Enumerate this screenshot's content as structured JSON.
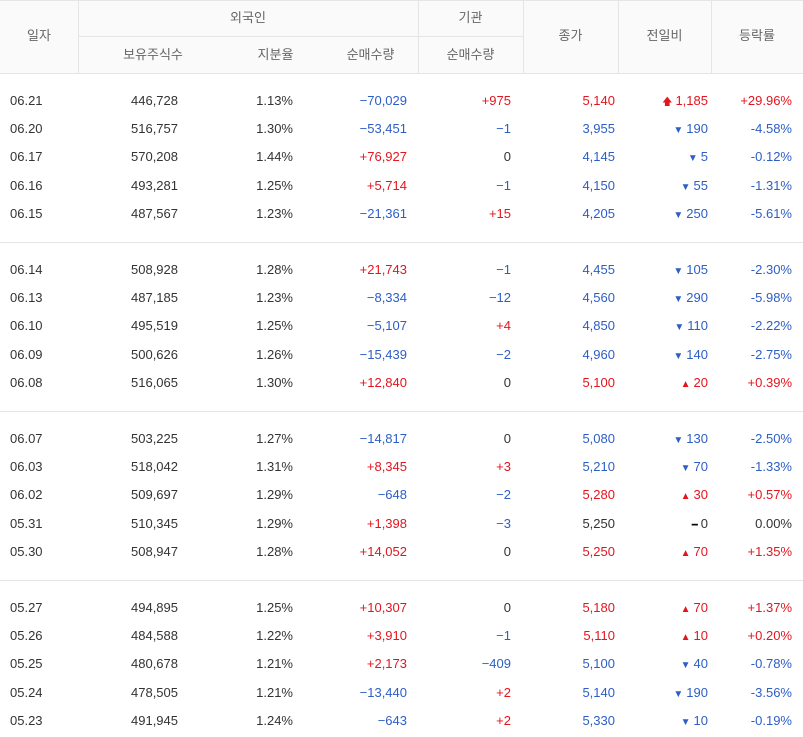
{
  "header": {
    "date": "일자",
    "foreign": "외국인",
    "institution": "기관",
    "holdings": "보유주식수",
    "share_ratio": "지분율",
    "foreign_net": "순매수량",
    "inst_net": "순매수량",
    "close": "종가",
    "change": "전일비",
    "change_rate": "등락률"
  },
  "rows": [
    {
      "date": "06.21",
      "holdings": "446,728",
      "ratio": "1.13%",
      "foreign_net": "−70,029",
      "foreign_dir": "down",
      "inst_net": "+975",
      "inst_dir": "up",
      "close": "5,140",
      "close_dir": "up",
      "change_icon": "bold-up-arrow-icon",
      "change_mark": "🡅",
      "change": "1,185",
      "change_dir": "up",
      "rate": "+29.96%",
      "rate_dir": "up"
    },
    {
      "date": "06.20",
      "holdings": "516,757",
      "ratio": "1.30%",
      "foreign_net": "−53,451",
      "foreign_dir": "down",
      "inst_net": "−1",
      "inst_dir": "down",
      "close": "3,955",
      "close_dir": "down",
      "change_icon": "down-triangle-icon",
      "change_mark": "▼",
      "change": "190",
      "change_dir": "down",
      "rate": "-4.58%",
      "rate_dir": "down"
    },
    {
      "date": "06.17",
      "holdings": "570,208",
      "ratio": "1.44%",
      "foreign_net": "+76,927",
      "foreign_dir": "up",
      "inst_net": "0",
      "inst_dir": "flat",
      "close": "4,145",
      "close_dir": "down",
      "change_icon": "down-triangle-icon",
      "change_mark": "▼",
      "change": "5",
      "change_dir": "down",
      "rate": "-0.12%",
      "rate_dir": "down"
    },
    {
      "date": "06.16",
      "holdings": "493,281",
      "ratio": "1.25%",
      "foreign_net": "+5,714",
      "foreign_dir": "up",
      "inst_net": "−1",
      "inst_dir": "down",
      "close": "4,150",
      "close_dir": "down",
      "change_icon": "down-triangle-icon",
      "change_mark": "▼",
      "change": "55",
      "change_dir": "down",
      "rate": "-1.31%",
      "rate_dir": "down"
    },
    {
      "date": "06.15",
      "holdings": "487,567",
      "ratio": "1.23%",
      "foreign_net": "−21,361",
      "foreign_dir": "down",
      "inst_net": "+15",
      "inst_dir": "up",
      "close": "4,205",
      "close_dir": "down",
      "change_icon": "down-triangle-icon",
      "change_mark": "▼",
      "change": "250",
      "change_dir": "down",
      "rate": "-5.61%",
      "rate_dir": "down"
    },
    {
      "date": "06.14",
      "holdings": "508,928",
      "ratio": "1.28%",
      "foreign_net": "+21,743",
      "foreign_dir": "up",
      "inst_net": "−1",
      "inst_dir": "down",
      "close": "4,455",
      "close_dir": "down",
      "change_icon": "down-triangle-icon",
      "change_mark": "▼",
      "change": "105",
      "change_dir": "down",
      "rate": "-2.30%",
      "rate_dir": "down"
    },
    {
      "date": "06.13",
      "holdings": "487,185",
      "ratio": "1.23%",
      "foreign_net": "−8,334",
      "foreign_dir": "down",
      "inst_net": "−12",
      "inst_dir": "down",
      "close": "4,560",
      "close_dir": "down",
      "change_icon": "down-triangle-icon",
      "change_mark": "▼",
      "change": "290",
      "change_dir": "down",
      "rate": "-5.98%",
      "rate_dir": "down"
    },
    {
      "date": "06.10",
      "holdings": "495,519",
      "ratio": "1.25%",
      "foreign_net": "−5,107",
      "foreign_dir": "down",
      "inst_net": "+4",
      "inst_dir": "up",
      "close": "4,850",
      "close_dir": "down",
      "change_icon": "down-triangle-icon",
      "change_mark": "▼",
      "change": "110",
      "change_dir": "down",
      "rate": "-2.22%",
      "rate_dir": "down"
    },
    {
      "date": "06.09",
      "holdings": "500,626",
      "ratio": "1.26%",
      "foreign_net": "−15,439",
      "foreign_dir": "down",
      "inst_net": "−2",
      "inst_dir": "down",
      "close": "4,960",
      "close_dir": "down",
      "change_icon": "down-triangle-icon",
      "change_mark": "▼",
      "change": "140",
      "change_dir": "down",
      "rate": "-2.75%",
      "rate_dir": "down"
    },
    {
      "date": "06.08",
      "holdings": "516,065",
      "ratio": "1.30%",
      "foreign_net": "+12,840",
      "foreign_dir": "up",
      "inst_net": "0",
      "inst_dir": "flat",
      "close": "5,100",
      "close_dir": "up",
      "change_icon": "up-triangle-icon",
      "change_mark": "▲",
      "change": "20",
      "change_dir": "up",
      "rate": "+0.39%",
      "rate_dir": "up"
    },
    {
      "date": "06.07",
      "holdings": "503,225",
      "ratio": "1.27%",
      "foreign_net": "−14,817",
      "foreign_dir": "down",
      "inst_net": "0",
      "inst_dir": "flat",
      "close": "5,080",
      "close_dir": "down",
      "change_icon": "down-triangle-icon",
      "change_mark": "▼",
      "change": "130",
      "change_dir": "down",
      "rate": "-2.50%",
      "rate_dir": "down"
    },
    {
      "date": "06.03",
      "holdings": "518,042",
      "ratio": "1.31%",
      "foreign_net": "+8,345",
      "foreign_dir": "up",
      "inst_net": "+3",
      "inst_dir": "up",
      "close": "5,210",
      "close_dir": "down",
      "change_icon": "down-triangle-icon",
      "change_mark": "▼",
      "change": "70",
      "change_dir": "down",
      "rate": "-1.33%",
      "rate_dir": "down"
    },
    {
      "date": "06.02",
      "holdings": "509,697",
      "ratio": "1.29%",
      "foreign_net": "−648",
      "foreign_dir": "down",
      "inst_net": "−2",
      "inst_dir": "down",
      "close": "5,280",
      "close_dir": "up",
      "change_icon": "up-triangle-icon",
      "change_mark": "▲",
      "change": "30",
      "change_dir": "up",
      "rate": "+0.57%",
      "rate_dir": "up"
    },
    {
      "date": "05.31",
      "holdings": "510,345",
      "ratio": "1.29%",
      "foreign_net": "+1,398",
      "foreign_dir": "up",
      "inst_net": "−3",
      "inst_dir": "down",
      "close": "5,250",
      "close_dir": "flat",
      "change_icon": "unchanged-dash-icon",
      "change_mark": "━",
      "change": "0",
      "change_dir": "flat",
      "rate": "0.00%",
      "rate_dir": "flat"
    },
    {
      "date": "05.30",
      "holdings": "508,947",
      "ratio": "1.28%",
      "foreign_net": "+14,052",
      "foreign_dir": "up",
      "inst_net": "0",
      "inst_dir": "flat",
      "close": "5,250",
      "close_dir": "up",
      "change_icon": "up-triangle-icon",
      "change_mark": "▲",
      "change": "70",
      "change_dir": "up",
      "rate": "+1.35%",
      "rate_dir": "up"
    },
    {
      "date": "05.27",
      "holdings": "494,895",
      "ratio": "1.25%",
      "foreign_net": "+10,307",
      "foreign_dir": "up",
      "inst_net": "0",
      "inst_dir": "flat",
      "close": "5,180",
      "close_dir": "up",
      "change_icon": "up-triangle-icon",
      "change_mark": "▲",
      "change": "70",
      "change_dir": "up",
      "rate": "+1.37%",
      "rate_dir": "up"
    },
    {
      "date": "05.26",
      "holdings": "484,588",
      "ratio": "1.22%",
      "foreign_net": "+3,910",
      "foreign_dir": "up",
      "inst_net": "−1",
      "inst_dir": "down",
      "close": "5,110",
      "close_dir": "up",
      "change_icon": "up-triangle-icon",
      "change_mark": "▲",
      "change": "10",
      "change_dir": "up",
      "rate": "+0.20%",
      "rate_dir": "up"
    },
    {
      "date": "05.25",
      "holdings": "480,678",
      "ratio": "1.21%",
      "foreign_net": "+2,173",
      "foreign_dir": "up",
      "inst_net": "−409",
      "inst_dir": "down",
      "close": "5,100",
      "close_dir": "down",
      "change_icon": "down-triangle-icon",
      "change_mark": "▼",
      "change": "40",
      "change_dir": "down",
      "rate": "-0.78%",
      "rate_dir": "down"
    },
    {
      "date": "05.24",
      "holdings": "478,505",
      "ratio": "1.21%",
      "foreign_net": "−13,440",
      "foreign_dir": "down",
      "inst_net": "+2",
      "inst_dir": "up",
      "close": "5,140",
      "close_dir": "down",
      "change_icon": "down-triangle-icon",
      "change_mark": "▼",
      "change": "190",
      "change_dir": "down",
      "rate": "-3.56%",
      "rate_dir": "down"
    },
    {
      "date": "05.23",
      "holdings": "491,945",
      "ratio": "1.24%",
      "foreign_net": "−643",
      "foreign_dir": "down",
      "inst_net": "+2",
      "inst_dir": "up",
      "close": "5,330",
      "close_dir": "down",
      "change_icon": "down-triangle-icon",
      "change_mark": "▼",
      "change": "10",
      "change_dir": "down",
      "rate": "-0.19%",
      "rate_dir": "down"
    }
  ],
  "colors": {
    "up": "#e4151e",
    "down": "#2d5ec6",
    "flat": "#333333",
    "header_bg": "#fafafa",
    "line": "#e5e5e5"
  }
}
